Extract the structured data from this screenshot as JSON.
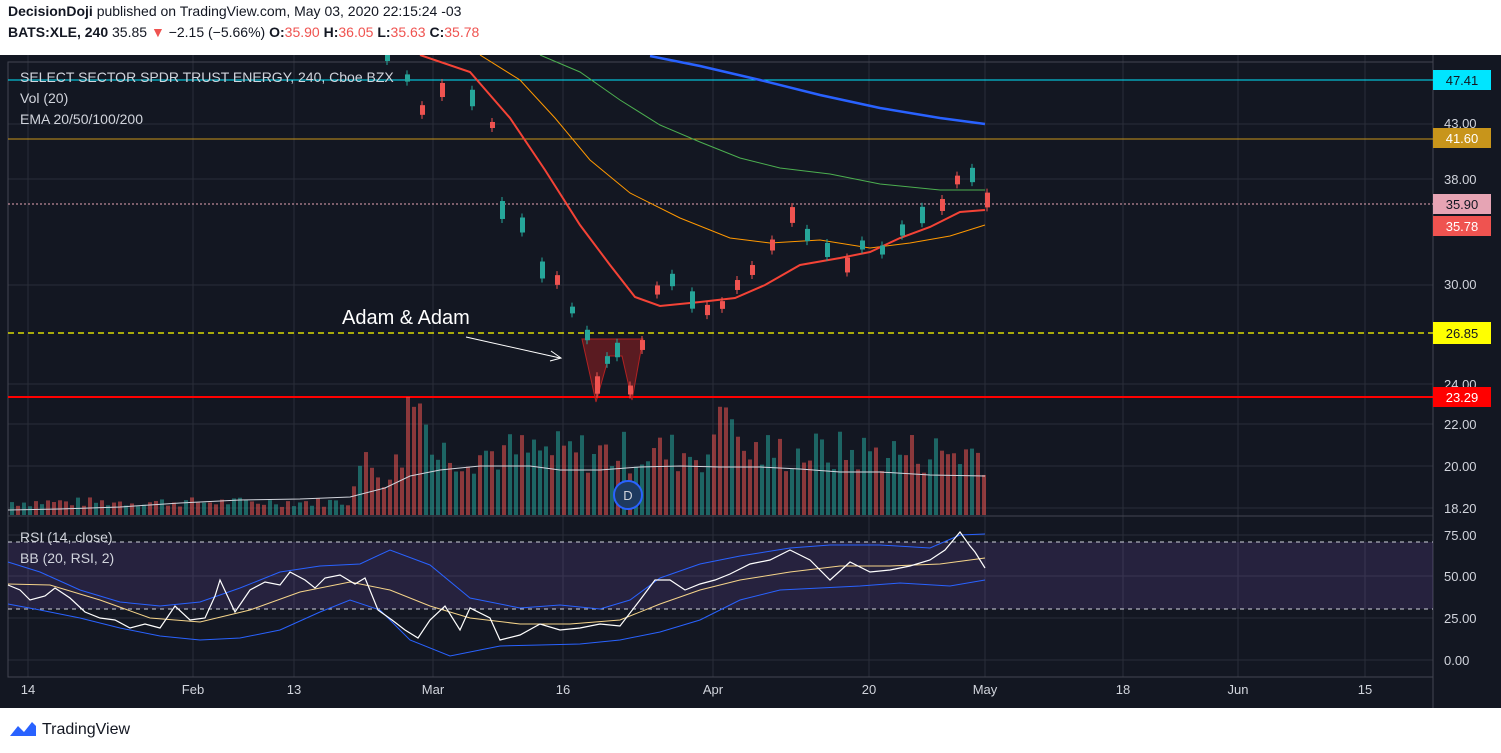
{
  "header": {
    "publisher": "DecisionDoji",
    "publish_text": "published on TradingView.com, May 03, 2020 22:15:24 -03",
    "symbol_line": "BATS:XLE, 240",
    "last": "35.85",
    "change": "−2.15 (−5.66%)",
    "o_label": "O:",
    "o": "35.90",
    "h_label": "H:",
    "h": "36.05",
    "l_label": "L:",
    "l": "35.63",
    "c_label": "C:",
    "c": "35.78"
  },
  "legend": {
    "title": "SELECT SECTOR SPDR TRUST ENERGY, 240, Cboe BZX",
    "vol": "Vol (20)",
    "ema": "EMA 20/50/100/200",
    "rsi": "RSI (14, close)",
    "bb": "BB (20, RSI, 2)"
  },
  "annotation": {
    "text": "Adam & Adam"
  },
  "price_axis": {
    "ticks": [
      "43.00",
      "38.00",
      "30.00",
      "24.00",
      "22.00",
      "20.00",
      "18.20"
    ],
    "tags": [
      {
        "text": "47.41",
        "bg": "#00e5ff",
        "fg": "#131722"
      },
      {
        "text": "41.60",
        "bg": "#c8951b",
        "fg": "#ffffff"
      },
      {
        "text": "35.90",
        "bg": "#e6a4b4",
        "fg": "#131722"
      },
      {
        "text": "35.78",
        "bg": "#ef5350",
        "fg": "#ffffff"
      },
      {
        "text": "26.85",
        "bg": "#ffff00",
        "fg": "#131722"
      },
      {
        "text": "23.29",
        "bg": "#ff0000",
        "fg": "#ffffff"
      }
    ]
  },
  "rsi_axis": {
    "ticks": [
      "75.00",
      "50.00",
      "25.00",
      "0.00"
    ]
  },
  "time_axis": {
    "labels": [
      "14",
      "Feb",
      "13",
      "Mar",
      "16",
      "Apr",
      "20",
      "May",
      "18",
      "Jun",
      "15"
    ]
  },
  "event_badge": "D",
  "footer": {
    "brand": "TradingView"
  },
  "chart_data": {
    "type": "candlestick",
    "symbol": "BATS:XLE",
    "interval": "240",
    "horizontal_levels": [
      47.41,
      41.6,
      35.9,
      26.85,
      23.29
    ],
    "pattern": {
      "name": "Adam & Adam",
      "low": 23.29
    },
    "price_samples": [
      {
        "date": "Feb 26",
        "price": 47.5
      },
      {
        "date": "Mar 02",
        "price": 45.0
      },
      {
        "date": "Mar 06",
        "price": 42.5
      },
      {
        "date": "Mar 10",
        "price": 35.0
      },
      {
        "date": "Mar 13",
        "price": 33.0
      },
      {
        "date": "Mar 16",
        "price": 29.0
      },
      {
        "date": "Mar 18",
        "price": 26.5
      },
      {
        "date": "Mar 20",
        "price": 23.3
      },
      {
        "date": "Mar 23",
        "price": 23.3
      },
      {
        "date": "Mar 25",
        "price": 28.5
      },
      {
        "date": "Apr 01",
        "price": 27.5
      },
      {
        "date": "Apr 08",
        "price": 33.5
      },
      {
        "date": "Apr 15",
        "price": 34.5
      },
      {
        "date": "Apr 21",
        "price": 31.0
      },
      {
        "date": "Apr 27",
        "price": 35.0
      },
      {
        "date": "Apr 29",
        "price": 38.5
      },
      {
        "date": "May 01",
        "price": 35.78
      }
    ],
    "rsi": {
      "period": 14,
      "upper": 70,
      "lower": 30,
      "last": 55
    }
  }
}
